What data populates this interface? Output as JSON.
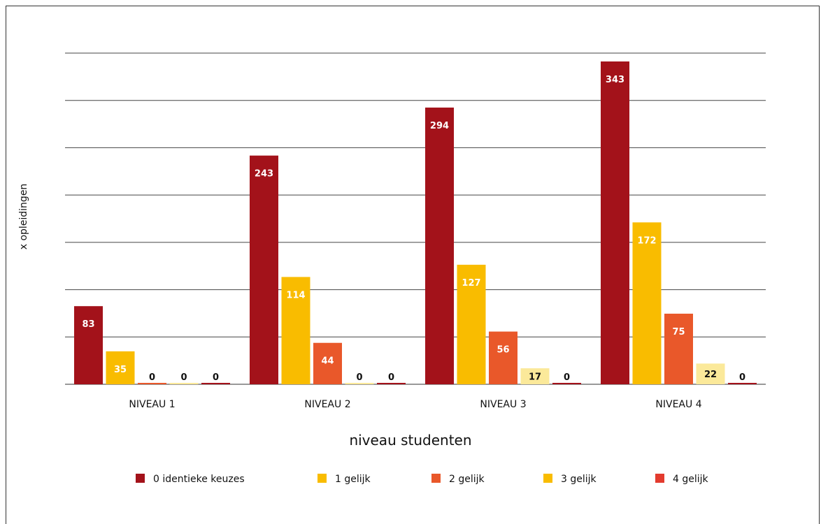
{
  "chart_data": {
    "type": "bar",
    "categories": [
      "NIVEAU 1",
      "NIVEAU 2",
      "NIVEAU 3",
      "NIVEAU 4"
    ],
    "series": [
      {
        "name": "0 identieke keuzes",
        "color": "#a3121a",
        "values": [
          83,
          243,
          294,
          343
        ]
      },
      {
        "name": "1 gelijk",
        "color": "#f9bc00",
        "values": [
          35,
          114,
          127,
          172
        ]
      },
      {
        "name": "2 gelijk",
        "color": "#e9582a",
        "values": [
          0,
          44,
          56,
          75
        ]
      },
      {
        "name": "3 gelijk",
        "color": "#f9bc00",
        "values": [
          0,
          0,
          17,
          22
        ]
      },
      {
        "name": "4 gelijk",
        "color": "#e33b2e",
        "values": [
          0,
          0,
          0,
          0
        ]
      }
    ],
    "data_label_fill_colors": [
      "#a3121a",
      "#f9bc00",
      "#e9582a",
      "#fbe99a",
      "#a3121a"
    ],
    "xlabel": "niveau studenten",
    "ylabel": "x opleidingen",
    "ylim": [
      0,
      350
    ],
    "grid": true,
    "show_y_tick_labels": false,
    "legend_position": "bottom"
  }
}
